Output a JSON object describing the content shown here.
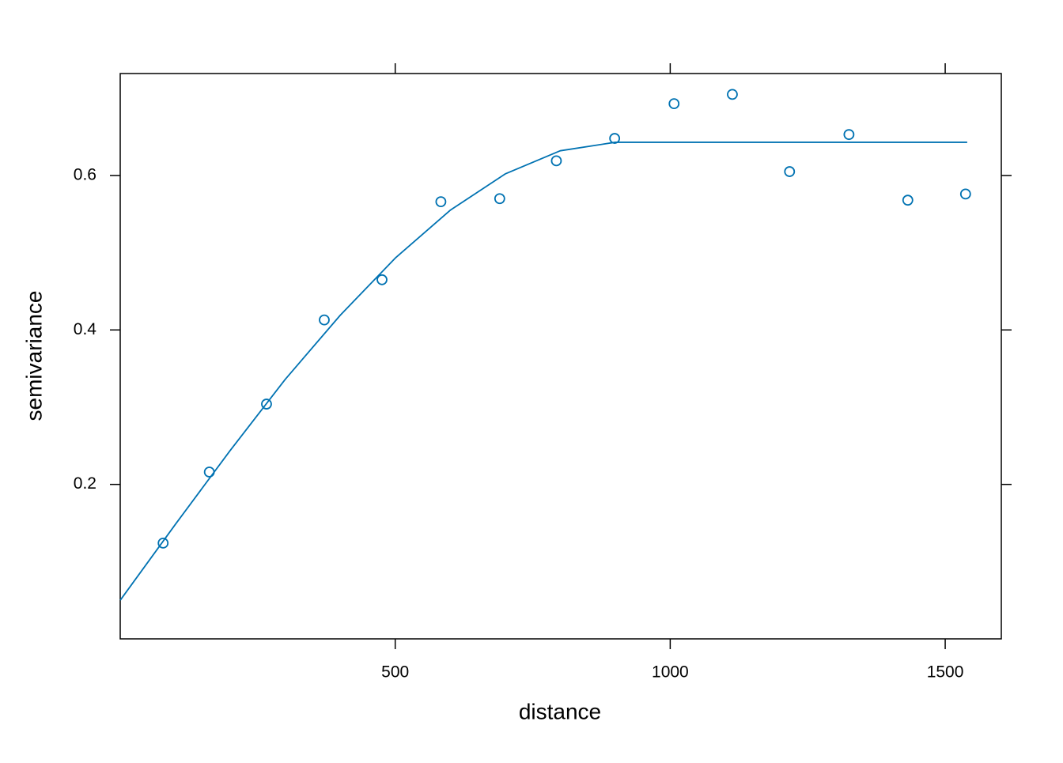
{
  "chart_data": {
    "type": "scatter",
    "x_label": "distance",
    "y_label": "semivariance",
    "series": [
      {
        "type": "scatter",
        "color": "#0072b2",
        "x": [
          78,
          162,
          266,
          371,
          476,
          583,
          690,
          793,
          899,
          1007,
          1113,
          1217,
          1325,
          1432,
          1537
        ],
        "values": [
          0.124,
          0.216,
          0.304,
          0.413,
          0.465,
          0.566,
          0.57,
          0.619,
          0.648,
          0.693,
          0.705,
          0.605,
          0.653,
          0.568,
          0.576
        ]
      },
      {
        "type": "line",
        "color": "#0072b2",
        "x": [
          0,
          100,
          200,
          300,
          400,
          500,
          600,
          700,
          800,
          900,
          1540
        ],
        "values": [
          0.05,
          0.148,
          0.244,
          0.336,
          0.419,
          0.493,
          0.555,
          0.602,
          0.632,
          0.643,
          0.643
        ]
      }
    ],
    "xlim": [
      0,
      1602
    ],
    "xticks": [
      500,
      1000,
      1500
    ],
    "ylim": [
      0,
      0.732
    ],
    "yticks": [
      0.2,
      0.4,
      0.6
    ]
  }
}
